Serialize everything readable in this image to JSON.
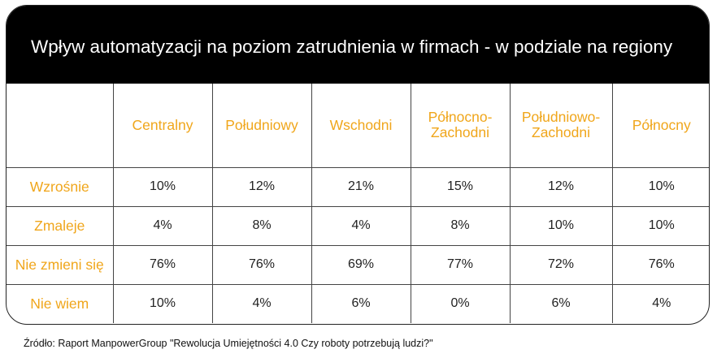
{
  "chart_data": {
    "type": "table",
    "title": "Wpływ automatyzacji na poziom zatrudnienia w firmach - w podziale na regiony",
    "columns": [
      "Centralny",
      "Południowy",
      "Wschodni",
      "Północno-\nZachodni",
      "Południowo-\nZachodni",
      "Północny"
    ],
    "rows": [
      {
        "label": "Wzrośnie",
        "values": [
          "10%",
          "12%",
          "21%",
          "15%",
          "12%",
          "10%"
        ]
      },
      {
        "label": "Zmaleje",
        "values": [
          "4%",
          "8%",
          "4%",
          "8%",
          "10%",
          "10%"
        ]
      },
      {
        "label": "Nie zmieni się",
        "values": [
          "76%",
          "76%",
          "69%",
          "77%",
          "72%",
          "76%"
        ]
      },
      {
        "label": "Nie wiem",
        "values": [
          "10%",
          "4%",
          "6%",
          "0%",
          "6%",
          "4%"
        ]
      }
    ],
    "source": "Źródło: Raport ManpowerGroup \"Rewolucja Umiejętności 4.0 Czy roboty potrzebują ludzi?\"",
    "colors": {
      "header_bg": "#000000",
      "title": "#ffffff",
      "label": "#f0a61b",
      "value": "#222222"
    }
  }
}
